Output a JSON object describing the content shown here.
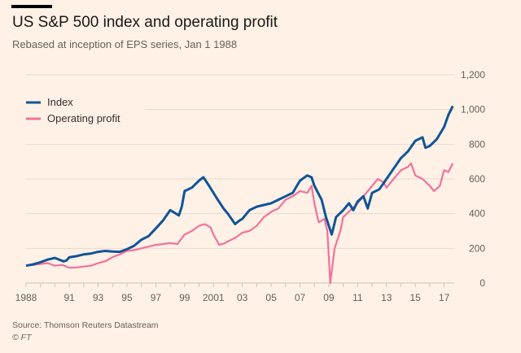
{
  "chart_data": {
    "type": "line",
    "title": "US S&P 500 index and operating profit",
    "subtitle": "Rebased at inception of EPS series, Jan 1 1988",
    "source": "Source: Thomson Reuters Datastream",
    "copyright": "© FT",
    "xlabel": "",
    "ylabel": "",
    "xlim": [
      1988,
      2017.7
    ],
    "ylim": [
      0,
      1200
    ],
    "y_ticks": [
      "0",
      "200",
      "400",
      "600",
      "800",
      "1,000",
      "1,200"
    ],
    "y_tick_values": [
      0,
      200,
      400,
      600,
      800,
      1000,
      1200
    ],
    "x_tick_labels": [
      "1988",
      "91",
      "93",
      "95",
      "97",
      "99",
      "2001",
      "03",
      "05",
      "07",
      "09",
      "11",
      "13",
      "15",
      "17"
    ],
    "x_tick_values": [
      1988,
      1991,
      1993,
      1995,
      1997,
      1999,
      2001,
      2003,
      2005,
      2007,
      2009,
      2011,
      2013,
      2015,
      2017
    ],
    "grid": true,
    "legend_position": "top-left",
    "series": [
      {
        "name": "Index",
        "color": "#0f5499",
        "x": [
          1988,
          1988.5,
          1989,
          1989.5,
          1990,
          1990.6,
          1990.8,
          1991,
          1991.5,
          1992,
          1992.5,
          1993,
          1993.5,
          1994,
          1994.5,
          1995,
          1995.5,
          1996,
          1996.5,
          1997,
          1997.5,
          1998,
          1998.6,
          1998.8,
          1999,
          1999.5,
          2000,
          2000.3,
          2000.7,
          2001,
          2001.3,
          2001.7,
          2002,
          2002.5,
          2002.8,
          2003,
          2003.5,
          2004,
          2004.5,
          2005,
          2005.5,
          2006,
          2006.5,
          2007,
          2007.5,
          2007.8,
          2008,
          2008.5,
          2008.8,
          2009.2,
          2009.5,
          2010,
          2010.4,
          2010.7,
          2011,
          2011.4,
          2011.7,
          2012,
          2012.5,
          2013,
          2013.5,
          2014,
          2014.5,
          2015,
          2015.5,
          2015.7,
          2016,
          2016.5,
          2017,
          2017.3,
          2017.6
        ],
        "values": [
          100,
          108,
          120,
          135,
          145,
          125,
          130,
          148,
          155,
          165,
          170,
          180,
          185,
          182,
          180,
          195,
          215,
          250,
          270,
          315,
          360,
          420,
          390,
          440,
          530,
          550,
          590,
          610,
          560,
          520,
          480,
          430,
          400,
          340,
          360,
          370,
          420,
          440,
          450,
          460,
          480,
          500,
          520,
          590,
          620,
          610,
          560,
          480,
          380,
          280,
          380,
          420,
          460,
          420,
          470,
          500,
          430,
          520,
          540,
          600,
          660,
          720,
          760,
          820,
          840,
          780,
          790,
          830,
          900,
          970,
          1020
        ]
      },
      {
        "name": "Operating profit",
        "color": "#f2719b",
        "x": [
          1988,
          1988.5,
          1989,
          1989.5,
          1990,
          1990.5,
          1991,
          1991.5,
          1992,
          1992.5,
          1993,
          1993.5,
          1994,
          1994.5,
          1995,
          1995.5,
          1996,
          1996.5,
          1997,
          1997.5,
          1998,
          1998.5,
          1999,
          1999.5,
          2000,
          2000.4,
          2000.8,
          2001,
          2001.4,
          2001.8,
          2002,
          2002.5,
          2003,
          2003.5,
          2004,
          2004.5,
          2005,
          2005.5,
          2006,
          2006.5,
          2007,
          2007.5,
          2007.8,
          2008,
          2008.3,
          2008.7,
          2008.9,
          2009.1,
          2009.4,
          2009.8,
          2010,
          2010.5,
          2011,
          2011.5,
          2012,
          2012.4,
          2012.8,
          2013,
          2013.5,
          2014,
          2014.5,
          2014.7,
          2015,
          2015.5,
          2016,
          2016.3,
          2016.7,
          2017,
          2017.3,
          2017.6
        ],
        "values": [
          100,
          105,
          110,
          115,
          100,
          105,
          88,
          90,
          95,
          100,
          115,
          125,
          150,
          165,
          185,
          190,
          200,
          210,
          220,
          225,
          230,
          225,
          280,
          300,
          330,
          340,
          320,
          280,
          220,
          230,
          240,
          260,
          290,
          300,
          330,
          380,
          410,
          430,
          480,
          500,
          530,
          520,
          560,
          460,
          350,
          370,
          300,
          0,
          200,
          300,
          380,
          420,
          460,
          510,
          560,
          600,
          580,
          550,
          600,
          650,
          670,
          690,
          620,
          600,
          560,
          530,
          560,
          650,
          640,
          690
        ]
      }
    ]
  }
}
